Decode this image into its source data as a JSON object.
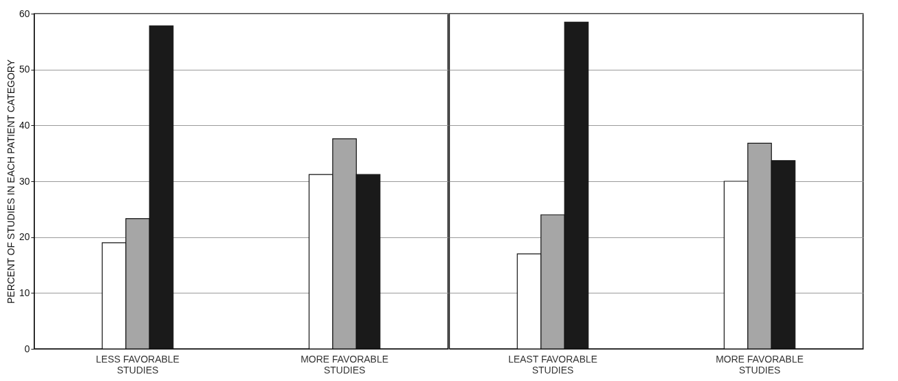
{
  "chart_data": [
    {
      "type": "bar",
      "ylabel": "PERCENT OF STUDIES IN EACH PATIENT CATEGORY",
      "categories": [
        "LESS FAVORABLE STUDIES",
        "MORE FAVORABLE STUDIES"
      ],
      "series": [
        {
          "color": "#ffffff",
          "values": [
            19,
            31.2
          ]
        },
        {
          "color": "#a6a6a6",
          "values": [
            23.3,
            37.6
          ]
        },
        {
          "color": "#1a1a1a",
          "values": [
            57.8,
            31.2
          ]
        }
      ],
      "ylim": [
        0,
        60
      ],
      "yticks": [
        0,
        10,
        20,
        30,
        40,
        50,
        60
      ],
      "grid": "y"
    },
    {
      "type": "bar",
      "categories": [
        "LEAST FAVORABLE STUDIES",
        "MORE FAVORABLE STUDIES"
      ],
      "series": [
        {
          "color": "#ffffff",
          "values": [
            17,
            30
          ]
        },
        {
          "color": "#a6a6a6",
          "values": [
            24,
            36.8
          ]
        },
        {
          "color": "#1a1a1a",
          "values": [
            58.5,
            33.7
          ]
        }
      ],
      "ylim": [
        0,
        60
      ],
      "yticks": [
        0,
        10,
        20,
        30,
        40,
        50,
        60
      ],
      "grid": "y",
      "tick_labels": "x"
    }
  ]
}
